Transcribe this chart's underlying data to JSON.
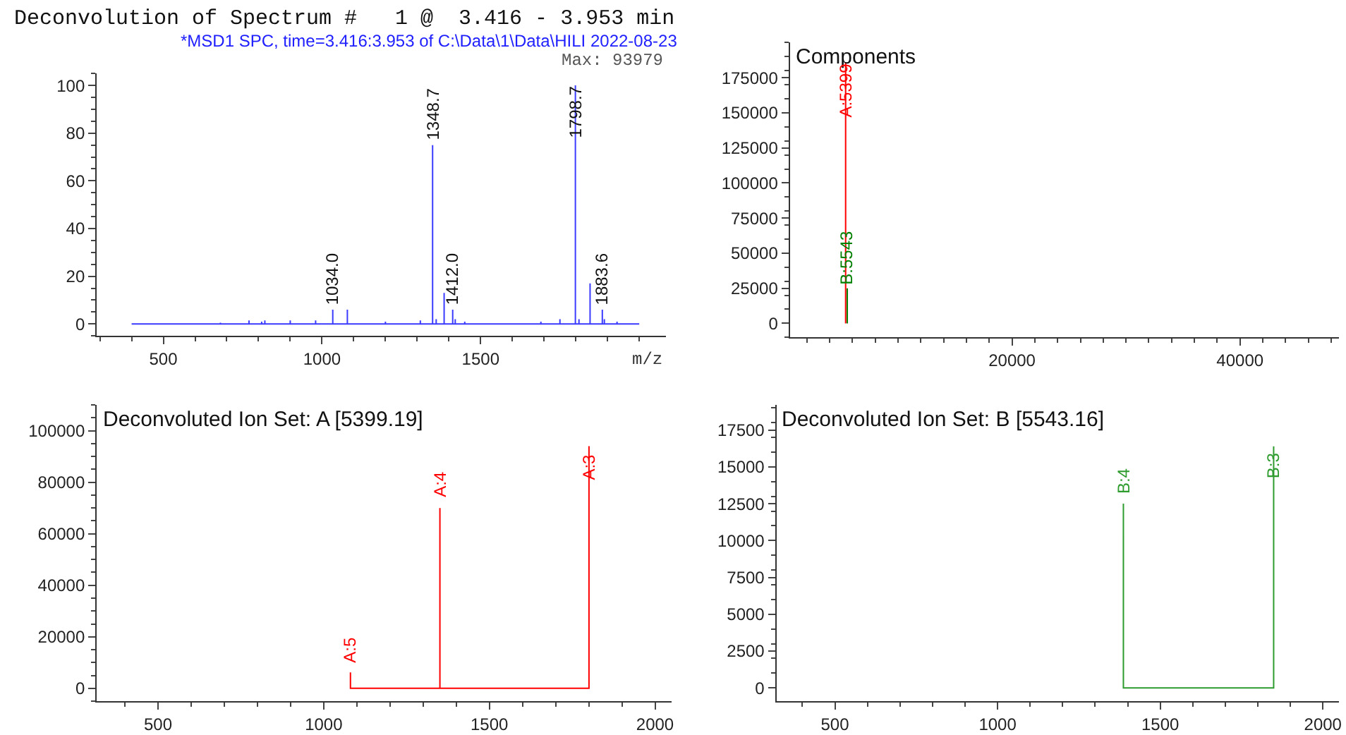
{
  "chart_data": [
    {
      "type": "line",
      "title": "Deconvolution of Spectrum #   1 @  3.416 - 3.953 min",
      "subtitle": "*MSD1 SPC, time=3.416:3.953 of C:\\Data\\1\\Data\\HILI 2022-08-23",
      "xlabel": "m/z",
      "series": [
        {
          "color": "#3b3bff",
          "x": [
            400,
            680,
            680,
            680,
            770,
            770,
            770,
            810,
            810,
            810,
            820,
            820,
            820,
            900,
            900,
            900,
            980,
            980,
            980,
            1034.0,
            1034.0,
            1034.0,
            1080,
            1080,
            1080,
            1200,
            1200,
            1200,
            1310,
            1310,
            1310,
            1348.7,
            1348.7,
            1348.7,
            1360,
            1360,
            1360,
            1385,
            1385,
            1385,
            1412.0,
            1412.0,
            1412.0,
            1420,
            1420,
            1420,
            1450,
            1450,
            1450,
            1690,
            1690,
            1690,
            1750,
            1750,
            1750,
            1798.7,
            1798.7,
            1798.7,
            1810,
            1810,
            1810,
            1845,
            1845,
            1845,
            1883.6,
            1883.6,
            1883.6,
            1890,
            1890,
            1890,
            1930,
            1930,
            1930,
            2000
          ],
          "values": [
            0,
            0,
            0.5,
            0,
            0,
            1.5,
            0,
            0,
            1,
            0,
            0,
            1.5,
            0,
            0,
            1.5,
            0,
            0,
            1.5,
            0,
            0,
            6,
            0,
            0,
            6,
            0,
            0,
            1,
            0,
            0,
            1.5,
            0,
            0,
            75,
            0,
            0,
            2,
            0,
            0,
            13,
            0,
            0,
            6,
            0,
            0,
            2,
            0,
            0,
            1,
            0,
            0,
            1,
            0,
            0,
            2,
            0,
            0,
            100,
            0,
            0,
            2,
            0,
            0,
            17,
            0,
            0,
            6,
            0,
            0,
            2,
            0,
            0,
            1,
            0,
            0
          ]
        }
      ],
      "annotations": [
        {
          "text": "1034.0",
          "x": 1034.0,
          "y": 7
        },
        {
          "text": "1348.7",
          "x": 1348.7,
          "y": 76
        },
        {
          "text": "1412.0",
          "x": 1412.0,
          "y": 7
        },
        {
          "text": "1798.7",
          "x": 1798.7,
          "y": 77
        },
        {
          "text": "1883.6",
          "x": 1883.6,
          "y": 7
        },
        "Max: 93979"
      ],
      "xlim": [
        290,
        2085
      ],
      "ylim": [
        -5,
        105
      ],
      "xticks": [
        500,
        1000,
        1500
      ],
      "yticks": [
        0,
        20,
        40,
        60,
        80,
        100
      ]
    },
    {
      "type": "line",
      "title": "Components",
      "series": [
        {
          "color": "#ff0000",
          "x": [
            5399.19,
            5399.19
          ],
          "values": [
            0,
            186000
          ]
        },
        {
          "color": "#008000",
          "x": [
            5543.16,
            5543.16
          ],
          "values": [
            0,
            25000
          ]
        }
      ],
      "annotations": [
        {
          "text": "A:5399",
          "x": 5399.19,
          "y": 145000
        },
        {
          "text": "B:5543",
          "x": 5543.16,
          "y": 25000
        }
      ],
      "xlim": [
        500,
        48700
      ],
      "ylim": [
        -10000,
        200000
      ],
      "xticks": [
        20000,
        40000
      ],
      "yticks": [
        0,
        25000,
        50000,
        75000,
        100000,
        125000,
        150000,
        175000
      ]
    },
    {
      "type": "line",
      "title": "Deconvoluted Ion Set: A [5399.19]",
      "series": [
        {
          "color": "#ff0000",
          "x": [
            1080.8,
            1080.8,
            1350.8,
            1350.8,
            1350.8,
            1800.7,
            1800.7
          ],
          "values": [
            6200,
            0,
            0,
            70000,
            0,
            0,
            94000
          ]
        }
      ],
      "annotations": [
        {
          "text": "A:5",
          "x": 1080.8,
          "y": 9000
        },
        {
          "text": "A:4",
          "x": 1350.8,
          "y": 73000
        },
        {
          "text": "A:3",
          "x": 1800.7,
          "y": 80000
        }
      ],
      "xlim": [
        315,
        2050
      ],
      "ylim": [
        -5000,
        110000
      ],
      "xticks": [
        500,
        1000,
        1500,
        2000
      ],
      "yticks": [
        0,
        20000,
        40000,
        60000,
        80000,
        100000
      ]
    },
    {
      "type": "line",
      "title": "Deconvoluted Ion Set: B [5543.16]",
      "series": [
        {
          "color": "#2e9b2e",
          "x": [
            1386.8,
            1386.8,
            1848.7,
            1848.7
          ],
          "values": [
            12500,
            0,
            0,
            16400
          ]
        }
      ],
      "annotations": [
        {
          "text": "B:4",
          "x": 1386.8,
          "y": 13000
        },
        {
          "text": "B:3",
          "x": 1848.7,
          "y": 14000
        }
      ],
      "xlim": [
        320,
        2050
      ],
      "ylim": [
        -900,
        19200
      ],
      "xticks": [
        500,
        1000,
        1500,
        2000
      ],
      "yticks": [
        0,
        2500,
        5000,
        7500,
        10000,
        12500,
        15000,
        17500
      ]
    }
  ]
}
